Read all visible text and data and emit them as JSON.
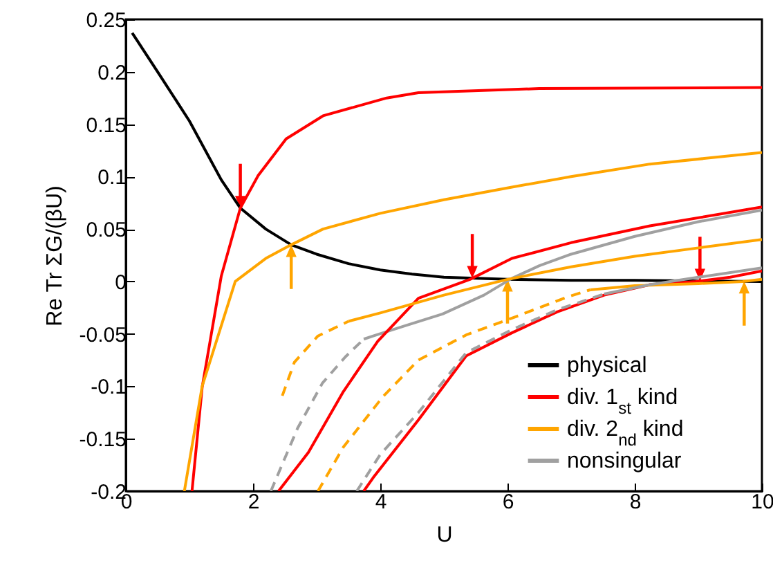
{
  "chart_data": {
    "type": "line",
    "xlabel": "U",
    "ylabel": "Re Tr ΣG/(βU)",
    "xlim": [
      0,
      10
    ],
    "ylim": [
      -0.2,
      0.25
    ],
    "xticks": [
      0,
      2,
      4,
      6,
      8,
      10
    ],
    "yticks": [
      -0.2,
      -0.15,
      -0.1,
      -0.05,
      0,
      0.05,
      0.1,
      0.15,
      0.2,
      0.25
    ],
    "grid": false,
    "legend": "bottom right",
    "series": [
      {
        "name": "physical",
        "color": "#000000",
        "line_style": "solid",
        "x": [
          0.1,
          0.5,
          1,
          1.5,
          1.8,
          2.2,
          2.6,
          3,
          3.5,
          4,
          4.5,
          5,
          5.5,
          6,
          7,
          8,
          10
        ],
        "values": [
          0.237,
          0.2,
          0.153,
          0.097,
          0.07,
          0.05,
          0.035,
          0.026,
          0.017,
          0.011,
          0.007,
          0.004,
          0.003,
          0.002,
          0.001,
          0.001,
          0
        ]
      },
      {
        "name": "div. 1$_{st}$ kind",
        "color": "#ff0000",
        "line_style": "solid",
        "x": [
          1.04,
          1.2,
          1.5,
          1.8,
          2.08,
          2.52,
          3.1,
          4.1,
          4.6,
          6.5,
          10
        ],
        "values": [
          -0.2,
          -0.101,
          0.005,
          0.07,
          0.101,
          0.136,
          0.158,
          0.175,
          0.18,
          0.184,
          0.185
        ]
      },
      {
        "name": "div. 2$_{nd}$ kind",
        "color": "#ffa500",
        "line_style": "solid",
        "x": [
          0.92,
          1.2,
          1.72,
          2.2,
          2.6,
          3.1,
          4,
          5,
          6.07,
          7,
          8.24,
          10
        ],
        "values": [
          -0.2,
          -0.1,
          0,
          0.022,
          0.035,
          0.05,
          0.065,
          0.078,
          0.09,
          0.1,
          0.112,
          0.123
        ]
      },
      {
        "name": "nonsingular",
        "color": "#a0a0a0",
        "line_style": "solid",
        "x": [
          3.74,
          3.89,
          4.4,
          4.98,
          5.63,
          6.07,
          6.5,
          7,
          8,
          9,
          10
        ],
        "values": [
          -0.055,
          -0.052,
          -0.042,
          -0.031,
          -0.013,
          0.003,
          0.015,
          0.026,
          0.043,
          0.057,
          0.068
        ]
      },
      {
        "color": "#ff0000",
        "line_style": "solid",
        "x": [
          2.4,
          2.87,
          3.42,
          3.96,
          4.6,
          5.41,
          6.07,
          7,
          8.24,
          10
        ],
        "values": [
          -0.2,
          -0.163,
          -0.105,
          -0.057,
          -0.016,
          0.002,
          0.022,
          0.037,
          0.053,
          0.071
        ]
      },
      {
        "color": "#ff0000",
        "line_style": "solid",
        "x": [
          3.74,
          3.89,
          4.6,
          5.35,
          6.07,
          6.78,
          7.52,
          8.24,
          8.96,
          9.5,
          10
        ],
        "values": [
          -0.2,
          -0.187,
          -0.132,
          -0.071,
          -0.049,
          -0.029,
          -0.013,
          -0.003,
          0,
          0.004,
          0.01
        ]
      },
      {
        "color": "#ffa500",
        "line_style": "solid",
        "x": [
          3.5,
          4,
          5,
          6,
          7,
          8,
          9,
          10
        ],
        "values": [
          -0.038,
          -0.03,
          -0.013,
          0.002,
          0.014,
          0.024,
          0.032,
          0.04
        ]
      },
      {
        "color": "#ffa500",
        "line_style": "solid",
        "x": [
          7.3,
          8,
          9,
          9.7,
          10
        ],
        "values": [
          -0.008,
          -0.004,
          -0.002,
          0,
          0.002
        ]
      },
      {
        "color": "#ffa500",
        "line_style": "dashed",
        "x": [
          2.46,
          2.65,
          3.02,
          3.5
        ],
        "values": [
          -0.109,
          -0.077,
          -0.052,
          -0.038
        ]
      },
      {
        "color": "#ffa500",
        "line_style": "dashed",
        "x": [
          3.02,
          3.42,
          4.04,
          4.6,
          5.35,
          6.07,
          6.93,
          7.3
        ],
        "values": [
          -0.2,
          -0.158,
          -0.11,
          -0.075,
          -0.051,
          -0.035,
          -0.015,
          -0.008
        ]
      },
      {
        "color": "#a0a0a0",
        "line_style": "dashed",
        "x": [
          2.28,
          2.7,
          3.09,
          3.45,
          3.74
        ],
        "values": [
          -0.2,
          -0.14,
          -0.097,
          -0.072,
          -0.055
        ]
      },
      {
        "color": "#a0a0a0",
        "line_style": "dashed",
        "x": [
          3.63,
          4,
          4.6,
          5.35,
          6.07,
          6.78,
          7.52
        ],
        "values": [
          -0.2,
          -0.165,
          -0.125,
          -0.068,
          -0.046,
          -0.027,
          -0.012
        ]
      },
      {
        "color": "#a0a0a0",
        "line_style": "solid",
        "x": [
          7.52,
          8.24,
          9,
          10
        ],
        "values": [
          -0.012,
          -0.003,
          0.004,
          0.013
        ]
      }
    ]
  }
}
